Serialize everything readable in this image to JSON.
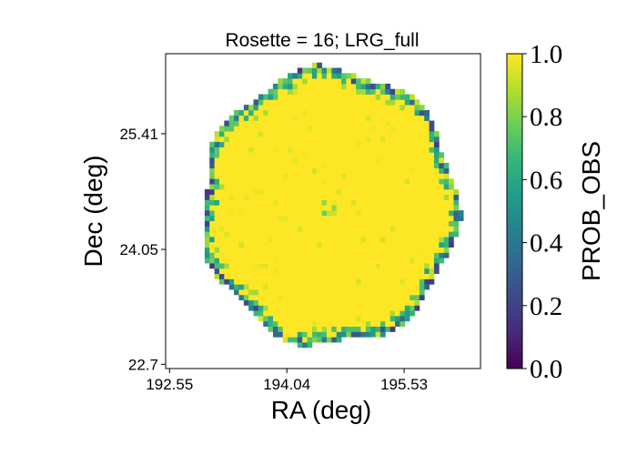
{
  "chart_data": {
    "type": "heatmap",
    "title": "Rosette = 16; LRG_full",
    "xlabel": "RA (deg)",
    "ylabel": "Dec (deg)",
    "xlim": [
      192.5,
      196.5
    ],
    "ylim": [
      22.65,
      26.35
    ],
    "x_ticks": [
      192.55,
      194.04,
      195.53
    ],
    "x_tick_labels": [
      "192.55",
      "194.04",
      "195.53"
    ],
    "y_ticks": [
      22.7,
      24.05,
      25.41
    ],
    "y_tick_labels": [
      "22.7",
      "24.05",
      "25.41"
    ],
    "colorbar": {
      "label": "PROB_OBS",
      "colormap": "viridis",
      "range": [
        0.0,
        1.0
      ],
      "ticks": [
        0.0,
        0.2,
        0.4,
        0.6,
        0.8,
        1.0
      ],
      "tick_labels": [
        "0.0",
        "0.2",
        "0.4",
        "0.6",
        "0.8",
        "1.0"
      ]
    },
    "footprint": {
      "center_ra": 194.58,
      "center_dec": 24.55,
      "radius_deg": 1.62,
      "lobes": 7,
      "interior_value": 1.0,
      "edge_value_range": [
        0.05,
        0.95
      ],
      "inner_hole_value": 0.75
    },
    "colors": {
      "viridis_stops": [
        "#440154",
        "#482878",
        "#3e4989",
        "#31688e",
        "#26828e",
        "#1f9e89",
        "#35b779",
        "#6ece58",
        "#b5de2b",
        "#fde725"
      ]
    }
  }
}
